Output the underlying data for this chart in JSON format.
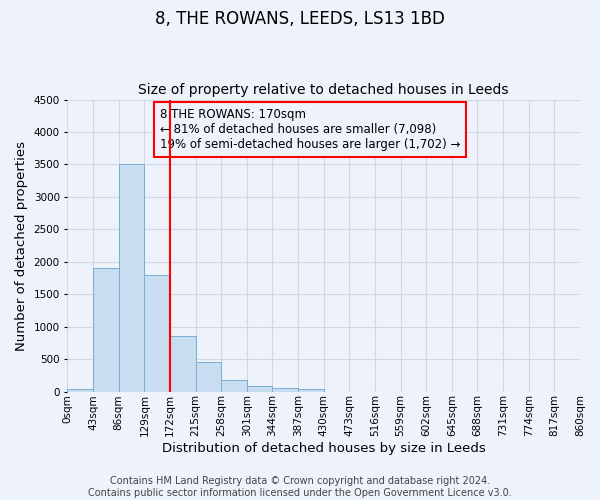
{
  "title": "8, THE ROWANS, LEEDS, LS13 1BD",
  "subtitle": "Size of property relative to detached houses in Leeds",
  "xlabel": "Distribution of detached houses by size in Leeds",
  "ylabel": "Number of detached properties",
  "bin_labels": [
    "0sqm",
    "43sqm",
    "86sqm",
    "129sqm",
    "172sqm",
    "215sqm",
    "258sqm",
    "301sqm",
    "344sqm",
    "387sqm",
    "430sqm",
    "473sqm",
    "516sqm",
    "559sqm",
    "602sqm",
    "645sqm",
    "688sqm",
    "731sqm",
    "774sqm",
    "817sqm",
    "860sqm"
  ],
  "bar_values": [
    40,
    1900,
    3500,
    1800,
    850,
    450,
    175,
    80,
    55,
    40,
    0,
    0,
    0,
    0,
    0,
    0,
    0,
    0,
    0,
    0
  ],
  "bar_color": "#c9ddf0",
  "bar_edge_color": "#7aaed4",
  "vline_x": 4,
  "vline_color": "red",
  "annotation_line1": "8 THE ROWANS: 170sqm",
  "annotation_line2": "← 81% of detached houses are smaller (7,098)",
  "annotation_line3": "19% of semi-detached houses are larger (1,702) →",
  "annotation_box_color": "red",
  "ylim": [
    0,
    4500
  ],
  "yticks": [
    0,
    500,
    1000,
    1500,
    2000,
    2500,
    3000,
    3500,
    4000,
    4500
  ],
  "grid_color": "#d0d8e8",
  "background_color": "#eef2fa",
  "footer_line1": "Contains HM Land Registry data © Crown copyright and database right 2024.",
  "footer_line2": "Contains public sector information licensed under the Open Government Licence v3.0.",
  "title_fontsize": 12,
  "subtitle_fontsize": 10,
  "axis_label_fontsize": 9.5,
  "tick_fontsize": 7.5,
  "footer_fontsize": 7,
  "annotation_fontsize": 8.5
}
